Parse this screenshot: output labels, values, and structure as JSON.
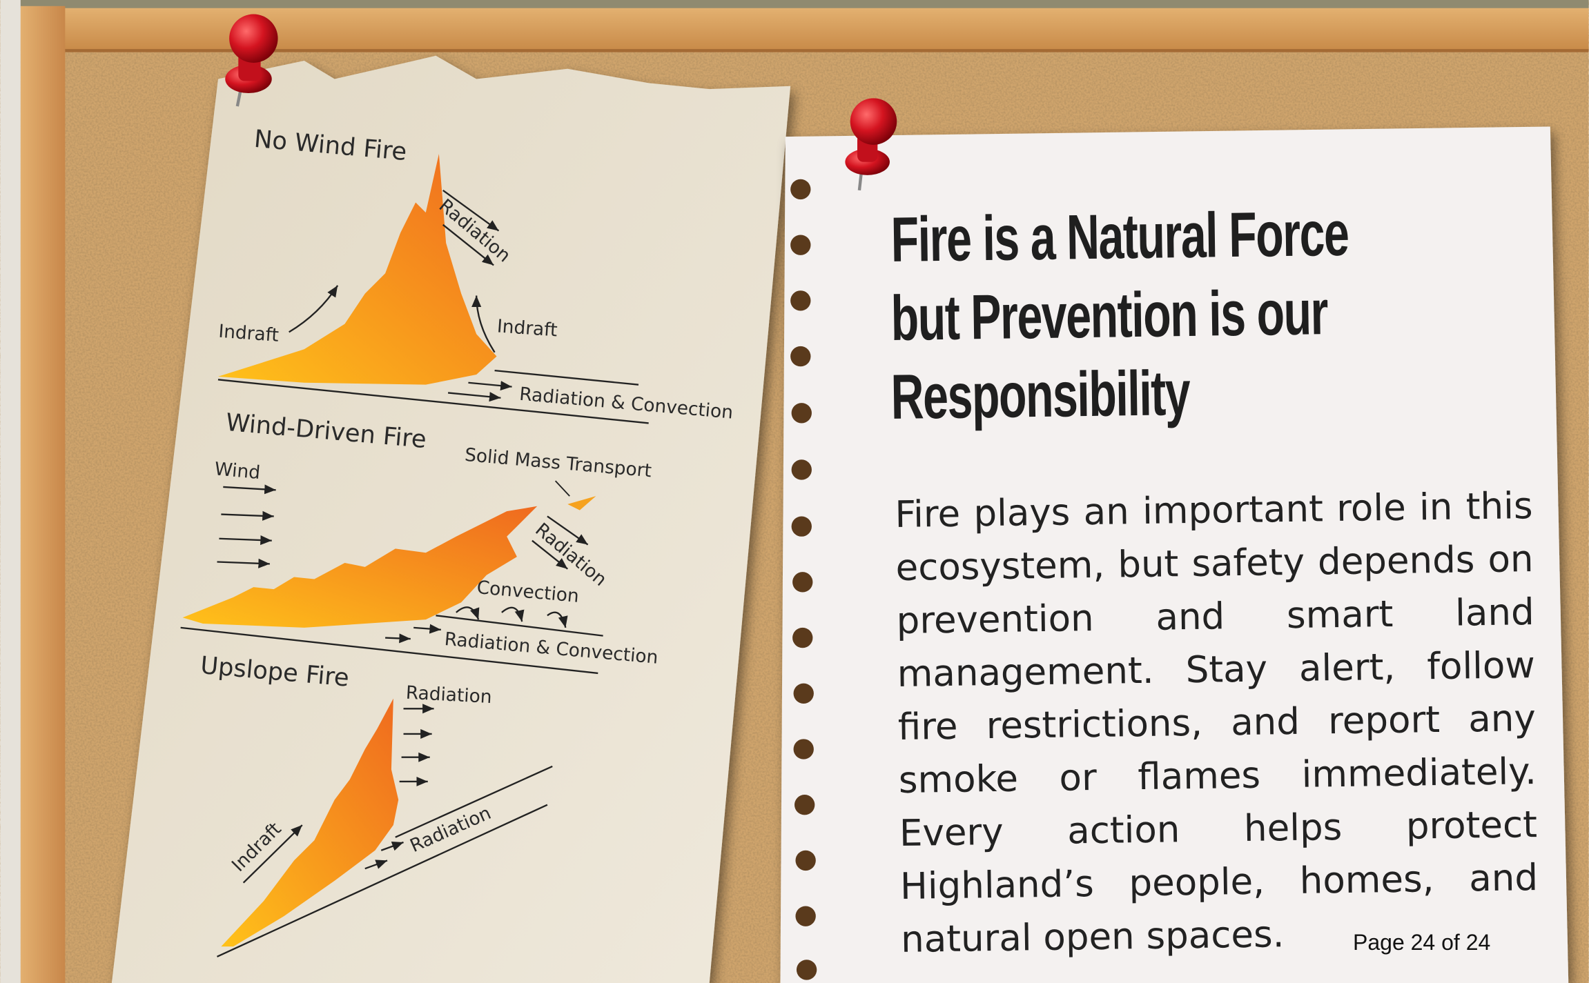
{
  "diagram": {
    "panels": [
      {
        "title": "No Wind Fire",
        "labels": [
          "Radiation",
          "Indraft",
          "Indraft",
          "Radiation & Convection"
        ]
      },
      {
        "title": "Wind-Driven Fire",
        "labels": [
          "Solid Mass Transport",
          "Wind",
          "Radiation",
          "Convection",
          "Radiation & Convection"
        ]
      },
      {
        "title": "Upslope Fire",
        "labels": [
          "Radiation",
          "Indraft",
          "Radiation"
        ]
      }
    ]
  },
  "page": {
    "title_lines": [
      "Fire is a Natural Force",
      "but Prevention is our",
      "Responsibility"
    ],
    "body": "Fire plays an important role in this ecosystem, but safety depends on prevention and smart land management. Stay alert, follow fire restrictions, and report any smoke or flames immediately. Every action helps protect Highland’s people, homes, and natural open spaces.",
    "page_number": "Page 24 of 24"
  }
}
